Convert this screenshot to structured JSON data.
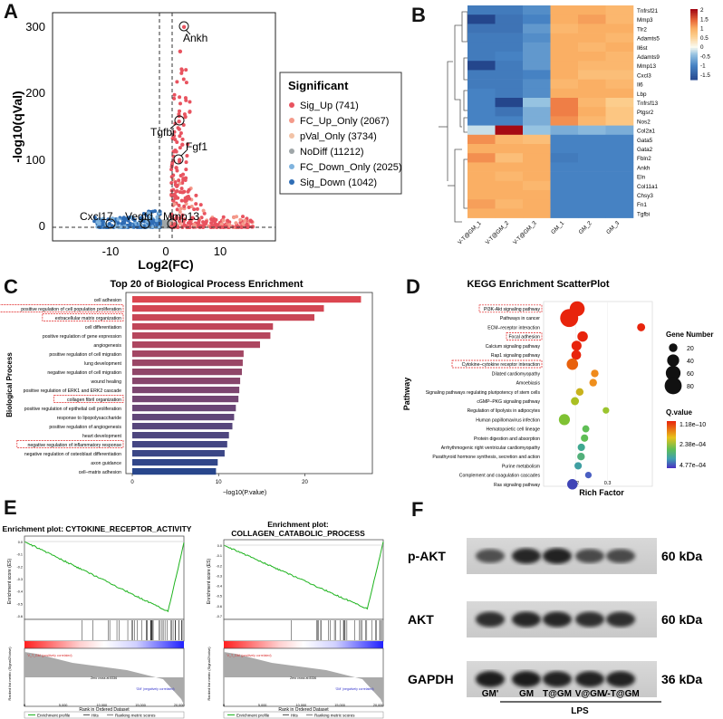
{
  "panel_labels": {
    "a": "A",
    "b": "B",
    "c": "C",
    "d": "D",
    "e": "E",
    "f": "F"
  },
  "volcano": {
    "y_axis_label": "-log10(qVal)",
    "x_axis_label": "Log2(FC)",
    "y_ticks": [
      "0",
      "100",
      "200",
      "300"
    ],
    "x_ticks": [
      "-10",
      "0",
      "10"
    ],
    "gene_labels": [
      "Ankh",
      "Tgfbi",
      "Fgf1",
      "Cxcl17",
      "Vegfd",
      "Mmp13"
    ],
    "legend_title": "Significant",
    "legend_items": [
      {
        "label": "Sig_Up (741)",
        "color": "#e8535f"
      },
      {
        "label": "FC_Up_Only (2067)",
        "color": "#f49a8a"
      },
      {
        "label": "pVal_Only (3734)",
        "color": "#f2c2a6"
      },
      {
        "label": "NoDiff (11212)",
        "color": "#9fa6a8"
      },
      {
        "label": "FC_Down_Only (2025)",
        "color": "#7fb3de"
      },
      {
        "label": "Sig_Down (1042)",
        "color": "#2f6db5"
      }
    ]
  },
  "heatmap": {
    "rows": [
      "Tnfrsf21",
      "Mmp3",
      "Tlr2",
      "Adamts5",
      "Il6st",
      "Adamts9",
      "Mmp13",
      "Cxcl3",
      "Il6",
      "Lbp",
      "Tnfrsf13",
      "Ptgsr2",
      "Nos2",
      "Col2a1",
      "Gata5",
      "Gata2",
      "Fbln2",
      "Ankh",
      "Eln",
      "Col11a1",
      "Chsy3",
      "Fn1",
      "Tgfbi"
    ],
    "columns": [
      "V-T@GM_1",
      "V-T@GM_2",
      "V-T@GM_3",
      "GM_1",
      "GM_2",
      "GM_3"
    ],
    "values": [
      [
        -1.1,
        -1.1,
        -0.9,
        1.0,
        1.0,
        0.9
      ],
      [
        -1.8,
        -1.2,
        -1.0,
        1.0,
        1.1,
        0.9
      ],
      [
        -1.2,
        -1.2,
        -0.8,
        0.9,
        1.0,
        1.0
      ],
      [
        -1.1,
        -1.1,
        -0.9,
        1.0,
        1.0,
        0.9
      ],
      [
        -1.1,
        -1.1,
        -0.8,
        1.0,
        0.9,
        1.0
      ],
      [
        -1.1,
        -1.0,
        -0.8,
        1.0,
        1.0,
        0.9
      ],
      [
        -1.8,
        -1.1,
        -0.8,
        1.0,
        0.9,
        0.9
      ],
      [
        -1.1,
        -1.1,
        -1.0,
        1.0,
        0.8,
        0.8
      ],
      [
        -1.1,
        -1.1,
        -0.9,
        0.9,
        1.0,
        0.9
      ],
      [
        -1.0,
        -1.1,
        -0.9,
        1.0,
        1.0,
        1.0
      ],
      [
        -1.0,
        -1.8,
        -0.4,
        1.3,
        0.9,
        0.6
      ],
      [
        -1.0,
        -1.2,
        -0.6,
        1.3,
        1.0,
        0.7
      ],
      [
        -1.0,
        -1.0,
        -0.6,
        1.2,
        0.9,
        0.7
      ],
      [
        -0.2,
        2.0,
        -0.4,
        -0.6,
        -0.5,
        -0.6
      ],
      [
        1.2,
        0.9,
        0.8,
        -1.0,
        -1.0,
        -1.0
      ],
      [
        1.0,
        1.0,
        1.0,
        -1.0,
        -1.0,
        -1.0
      ],
      [
        1.2,
        0.8,
        1.0,
        -1.1,
        -1.0,
        -1.0
      ],
      [
        1.0,
        1.0,
        1.0,
        -1.0,
        -1.0,
        -1.0
      ],
      [
        1.0,
        0.9,
        1.0,
        -1.0,
        -1.0,
        -1.0
      ],
      [
        1.0,
        1.0,
        0.9,
        -1.0,
        -1.0,
        -1.0
      ],
      [
        1.0,
        1.0,
        1.0,
        -1.0,
        -1.0,
        -1.0
      ],
      [
        1.1,
        0.9,
        1.0,
        -1.0,
        -1.0,
        -1.0
      ],
      [
        1.0,
        1.0,
        1.0,
        -1.0,
        -1.0,
        -1.0
      ]
    ],
    "scale_ticks": [
      "2",
      "1.5",
      "1",
      "0.5",
      "0",
      "-0.5",
      "-1",
      "-1.5"
    ]
  },
  "chart_data": [
    {
      "type": "bar",
      "title": "Top 20 of Biological Process Enrichment",
      "xlabel": "−log10(P.value)",
      "ylabel": "Biological Process",
      "xlim": [
        0,
        28
      ],
      "x_ticks": [
        "0",
        "10",
        "20"
      ],
      "categories": [
        "cell adhesion",
        "positive regulation of cell population proliferation",
        "extracellular matrix organization",
        "cell differentiation",
        "positive regulation of gene expression",
        "angiogenesis",
        "positive regulation of cell migration",
        "lung development",
        "negative regulation of cell migration",
        "wound healing",
        "positive regulation of ERK1 and ERK2 cascade",
        "collagen fibril organization",
        "positive regulation of epithelial cell proliferation",
        "response to lipopolysaccharide",
        "positive regulation of angiogenesis",
        "heart development",
        "negative regulation of inflammatory response",
        "negative regulation of osteoblast differentiation",
        "axon guidance",
        "cell–matrix adhesion"
      ],
      "values": [
        26.5,
        22.2,
        21.1,
        16.3,
        16.0,
        14.8,
        12.9,
        12.8,
        12.7,
        12.5,
        12.4,
        12.3,
        12.0,
        11.8,
        11.6,
        11.2,
        11.0,
        10.7,
        9.9,
        9.7
      ],
      "highlighted": [
        "positive regulation of cell population proliferation",
        "extracellular matrix organization",
        "collagen fibril organization",
        "negative regulation of inflammatory response"
      ]
    },
    {
      "type": "scatter",
      "title": "KEGG Enrichment ScatterPlot",
      "xlabel": "Rich Factor",
      "ylabel": "Pathway",
      "xlim": [
        0.1,
        0.44
      ],
      "x_ticks": [
        "0.2",
        "0.3"
      ],
      "categories": [
        "PI3K-Akt signaling pathway",
        "Pathways in cancer",
        "ECM–receptor interaction",
        "Focal adhesion",
        "Calcium signaling pathway",
        "Rap1 signaling pathway",
        "Cytokine–cytokine receptor interaction",
        "Dilated cardiomyopathy",
        "Amoebiasis",
        "Signaling pathways regulating pluripotency of stem cells",
        "cGMP–PKG signaling pathway",
        "Regulation of lipolysis in adipocytes",
        "Human papillomavirus infection",
        "Hematopoietic cell lineage",
        "Protein digestion and absorption",
        "Arrhythmogenic right ventricular cardiomyopathy",
        "Parathyroid hormone synthesis, secretion and action",
        "Purine metabolism",
        "Complement and coagulation cascades",
        "Ras signaling pathway"
      ],
      "rich_factor": [
        0.205,
        0.18,
        0.405,
        0.222,
        0.203,
        0.202,
        0.19,
        0.26,
        0.255,
        0.213,
        0.198,
        0.295,
        0.165,
        0.232,
        0.228,
        0.218,
        0.217,
        0.208,
        0.24,
        0.19
      ],
      "gene_number": [
        62,
        90,
        18,
        30,
        28,
        26,
        36,
        16,
        16,
        16,
        18,
        12,
        34,
        14,
        15,
        15,
        16,
        15,
        12,
        30
      ],
      "q_value_color": [
        "#e8240c",
        "#e8240c",
        "#e8240c",
        "#e8240c",
        "#e8240c",
        "#e8240c",
        "#e8610c",
        "#f08a1a",
        "#ef8f1d",
        "#c9b21c",
        "#aabf22",
        "#9bc42e",
        "#7fc233",
        "#5fbe55",
        "#5fbe55",
        "#3fa890",
        "#52b07a",
        "#3f9fa2",
        "#4a5fc2",
        "#3f44b6"
      ],
      "legend_gene_title": "Gene Number",
      "legend_gene_values": [
        "20",
        "40",
        "60",
        "80"
      ],
      "legend_q_title": "Q.value",
      "legend_q_ticks": [
        "1.18e–10",
        "2.38e–04",
        "4.77e–04"
      ],
      "highlighted": [
        "PI3K-Akt signaling pathway",
        "Focal adhesion",
        "Cytokine–cytokine receptor interaction"
      ]
    }
  ],
  "gsea": {
    "plot1_title": "Enrichment plot: CYTOKINE_RECEPTOR_ACTIVITY",
    "plot2_title_line1": "Enrichment plot:",
    "plot2_title_line2": "COLLAGEN_CATABOLIC_PROCESS",
    "y_label_top": "Enrichment score (ES)",
    "y_label_bottom": "Ranked list metric (Signal2Noise)",
    "x_label": "Rank in Ordered Dataset",
    "pos_label": "'V_T_GM' (positively correlated)",
    "neg_label": "'GM' (negatively correlated)",
    "zero_cross": "Zero cross at 8336",
    "zero_cross_2": "Zero cross at 8336",
    "x_ticks": [
      "0",
      "5,000",
      "10,000",
      "15,000",
      "20,000"
    ],
    "es_ticks_1": [
      "0.0",
      "-0.1",
      "-0.2",
      "-0.3",
      "-0.4",
      "-0.5",
      "-0.6"
    ],
    "es_ticks_2": [
      "0.0",
      "-0.1",
      "-0.2",
      "-0.3",
      "-0.4",
      "-0.5",
      "-0.6",
      "-0.7"
    ],
    "legend": [
      "Enrichment profile",
      "Hits",
      "Ranking metric scores"
    ]
  },
  "western": {
    "bands": [
      {
        "label": "p-AKT",
        "kda": "60 kDa",
        "intensity": [
          0.55,
          0.85,
          0.9,
          0.6,
          0.6
        ]
      },
      {
        "label": "AKT",
        "kda": "60 kDa",
        "intensity": [
          0.8,
          0.85,
          0.85,
          0.8,
          0.8
        ]
      },
      {
        "label": "GAPDH",
        "kda": "36 kDa",
        "intensity": [
          0.95,
          0.95,
          0.9,
          0.9,
          0.9
        ]
      }
    ],
    "lanes": [
      "GM'",
      "GM",
      "T@GM",
      "V@GM",
      "V-T@GM"
    ],
    "group_label": "LPS"
  }
}
